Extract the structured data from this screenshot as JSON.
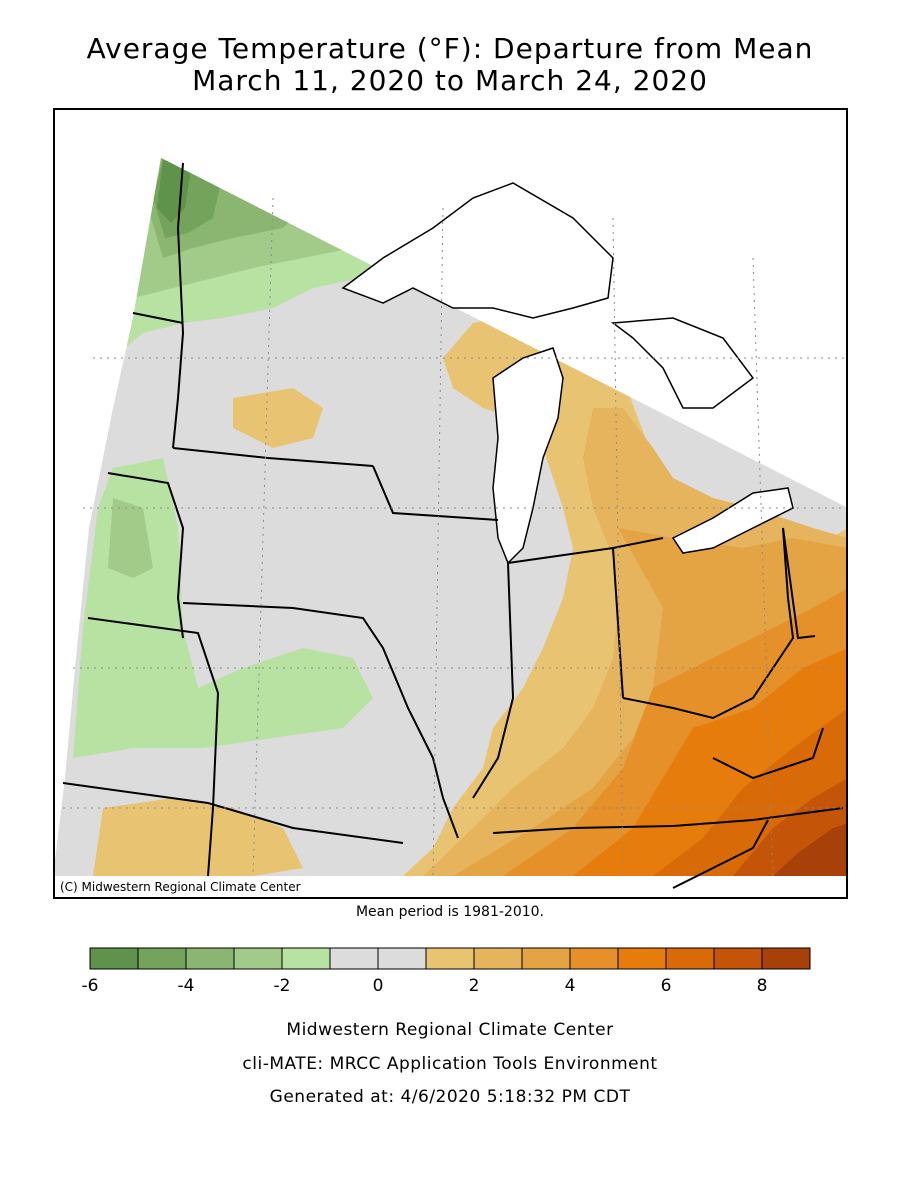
{
  "title_line1": "Average Temperature (°F): Departure from Mean",
  "title_line2": "March 11, 2020 to March 24, 2020",
  "copyright": "(C) Midwestern Regional Climate Center",
  "mean_period": "Mean period is 1981-2010.",
  "legend": {
    "colors": [
      "#5f924a",
      "#74a45c",
      "#8ab672",
      "#a2cb8a",
      "#b7e2a1",
      "#dcdcdc",
      "#dcdcdc",
      "#e8c472",
      "#e6b45c",
      "#e4a443",
      "#e59029",
      "#e67c0b",
      "#d86a08",
      "#c45508",
      "#a8400a"
    ],
    "tick_labels": [
      "-6",
      "-4",
      "-2",
      "0",
      "2",
      "4",
      "6",
      "8"
    ]
  },
  "footer": {
    "line1": "Midwestern Regional Climate Center",
    "line2": "cli-MATE: MRCC Application Tools Environment",
    "line3": "Generated at: 4/6/2020 5:18:32 PM CDT"
  }
}
